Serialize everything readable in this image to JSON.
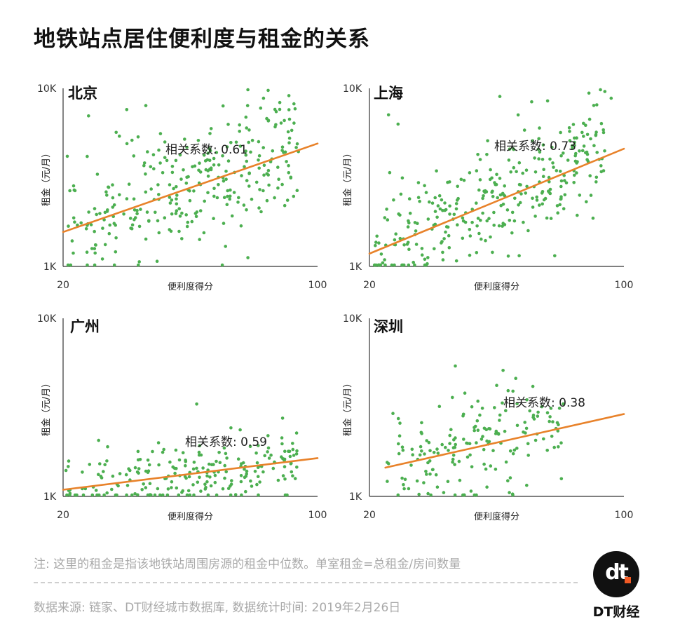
{
  "title": "地铁站点居住便利度与租金的关系",
  "note": "注: 这里的租金是指该地铁站周围房源的租金中位数。单室租金=总租金/房间数量",
  "source": "数据来源: 链家、DT财经城市数据库, 数据统计时间: 2019年2月26日",
  "brand": {
    "logo_text": "dt",
    "name": "DT财经"
  },
  "colors": {
    "points": "#4caf50",
    "trend": "#e8822a",
    "axis": "#333333"
  },
  "chart_data": [
    {
      "type": "scatter",
      "title": "北京",
      "xlabel": "便利度得分",
      "ylabel": "租金（元/月）",
      "x_ticks": [
        "20",
        "100"
      ],
      "y_ticks": [
        "10K",
        "1K"
      ],
      "xlim": [
        20,
        100
      ],
      "ylim": [
        1000,
        10000
      ],
      "y_scale": "log",
      "annotation": "相关系数: 0.61",
      "correlation": 0.61,
      "trend": {
        "x": [
          20,
          100
        ],
        "y": [
          1560,
          4900
        ]
      },
      "n_points": 300,
      "seed": 11,
      "spread": 0.17,
      "outliers": [
        [
          28,
          7000
        ],
        [
          40,
          7600
        ],
        [
          46,
          8000
        ],
        [
          78,
          8000
        ],
        [
          83,
          8800
        ],
        [
          87,
          7400
        ],
        [
          52,
          5000
        ]
      ]
    },
    {
      "type": "scatter",
      "title": "上海",
      "xlabel": "便利度得分",
      "ylabel": "租金（元/月）",
      "x_ticks": [
        "20",
        "100"
      ],
      "y_ticks": [
        "10K",
        "1K"
      ],
      "xlim": [
        20,
        100
      ],
      "ylim": [
        1000,
        10000
      ],
      "y_scale": "log",
      "annotation": "相关系数: 0.73",
      "correlation": 0.73,
      "trend": {
        "x": [
          20,
          100
        ],
        "y": [
          1180,
          4580
        ]
      },
      "n_points": 320,
      "seed": 23,
      "spread": 0.15,
      "outliers": [
        [
          26,
          7100
        ],
        [
          29,
          6300
        ],
        [
          61,
          9000
        ],
        [
          71,
          8400
        ],
        [
          76,
          8500
        ],
        [
          89,
          9400
        ],
        [
          94,
          9600
        ],
        [
          96,
          8800
        ]
      ]
    },
    {
      "type": "scatter",
      "title": "广州",
      "xlabel": "便利度得分",
      "ylabel": "租金（元/月）",
      "x_ticks": [
        "20",
        "100"
      ],
      "y_ticks": [
        "10K",
        "1K"
      ],
      "xlim": [
        20,
        100
      ],
      "ylim": [
        1000,
        10000
      ],
      "y_scale": "log",
      "annotation": "相关系数: 0.59",
      "correlation": 0.59,
      "trend": {
        "x": [
          20,
          100
        ],
        "y": [
          1090,
          1640
        ]
      },
      "n_points": 220,
      "seed": 37,
      "spread": 0.09,
      "outliers": [
        [
          62,
          3300
        ],
        [
          89,
          2750
        ],
        [
          50,
          2000
        ],
        [
          34,
          1900
        ]
      ]
    },
    {
      "type": "scatter",
      "title": "深圳",
      "xlabel": "便利度得分",
      "ylabel": "租金（元/月）",
      "x_ticks": [
        "20",
        "100"
      ],
      "y_ticks": [
        "10K",
        "1K"
      ],
      "xlim": [
        20,
        100
      ],
      "ylim": [
        1000,
        10000
      ],
      "y_scale": "log",
      "annotation": "相关系数: 0.38",
      "correlation": 0.38,
      "trend": {
        "x": [
          25,
          100
        ],
        "y": [
          1450,
          2900
        ]
      },
      "n_points": 170,
      "seed": 53,
      "x_range": [
        25,
        82
      ],
      "spread": 0.13,
      "outliers": [
        [
          47,
          5400
        ],
        [
          62,
          5100
        ],
        [
          60,
          4200
        ],
        [
          66,
          4600
        ],
        [
          50,
          3800
        ],
        [
          42,
          3200
        ],
        [
          64,
          1050
        ],
        [
          65,
          1030
        ]
      ]
    }
  ]
}
